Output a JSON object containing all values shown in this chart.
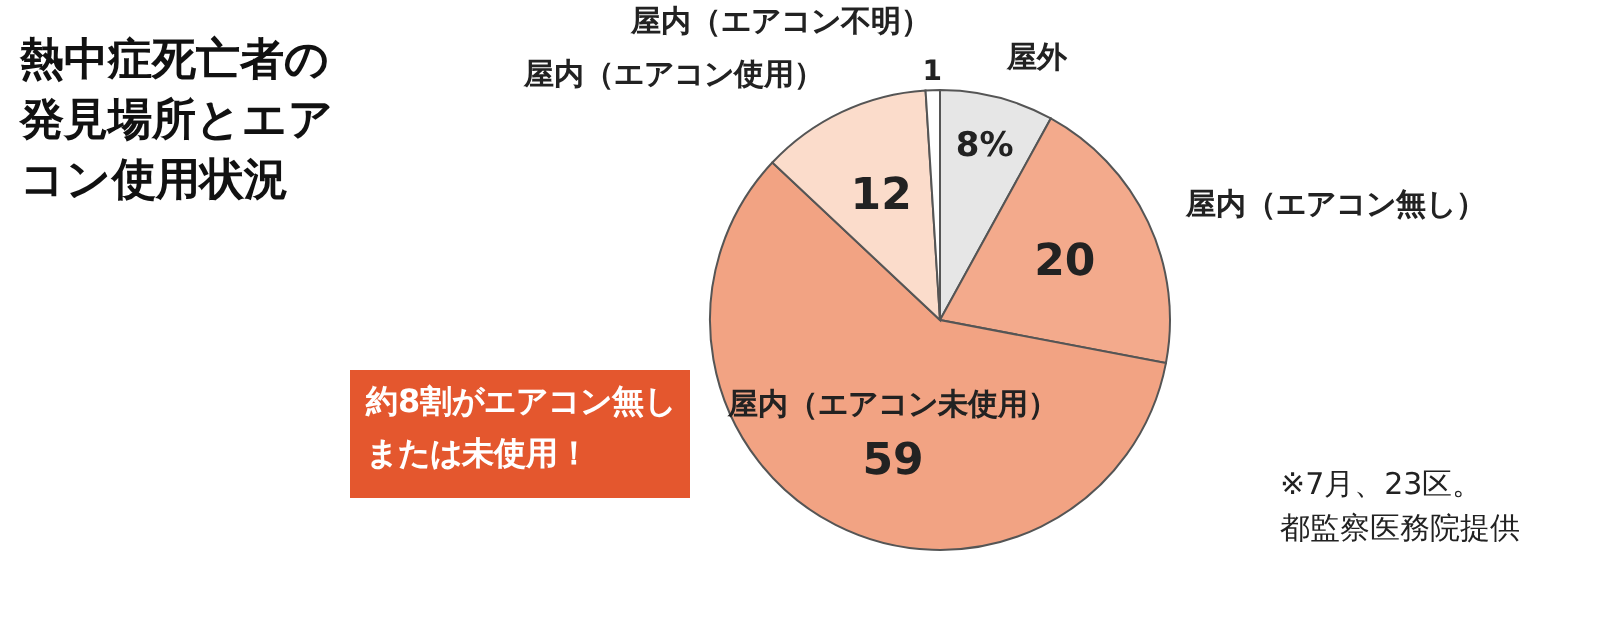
{
  "chart_data": {
    "type": "pie",
    "title": "熱中症死亡者の発見場所とエアコン使用状況",
    "categories": [
      "屋外",
      "屋内（エアコン無し）",
      "屋内（エアコン未使用）",
      "屋内（エアコン使用）",
      "屋内（エアコン不明）"
    ],
    "values": [
      8,
      20,
      59,
      12,
      1
    ],
    "value_labels": [
      "8%",
      "20",
      "59",
      "12",
      "1"
    ],
    "colors": [
      "#e6e6e6",
      "#f3aa8c",
      "#f2a383",
      "#fbdccb",
      "#ffffff"
    ],
    "annotations": [
      "約8割がエアコン無しまたは未使用！",
      "※7月、23区。都監察医務院提供"
    ]
  }
}
